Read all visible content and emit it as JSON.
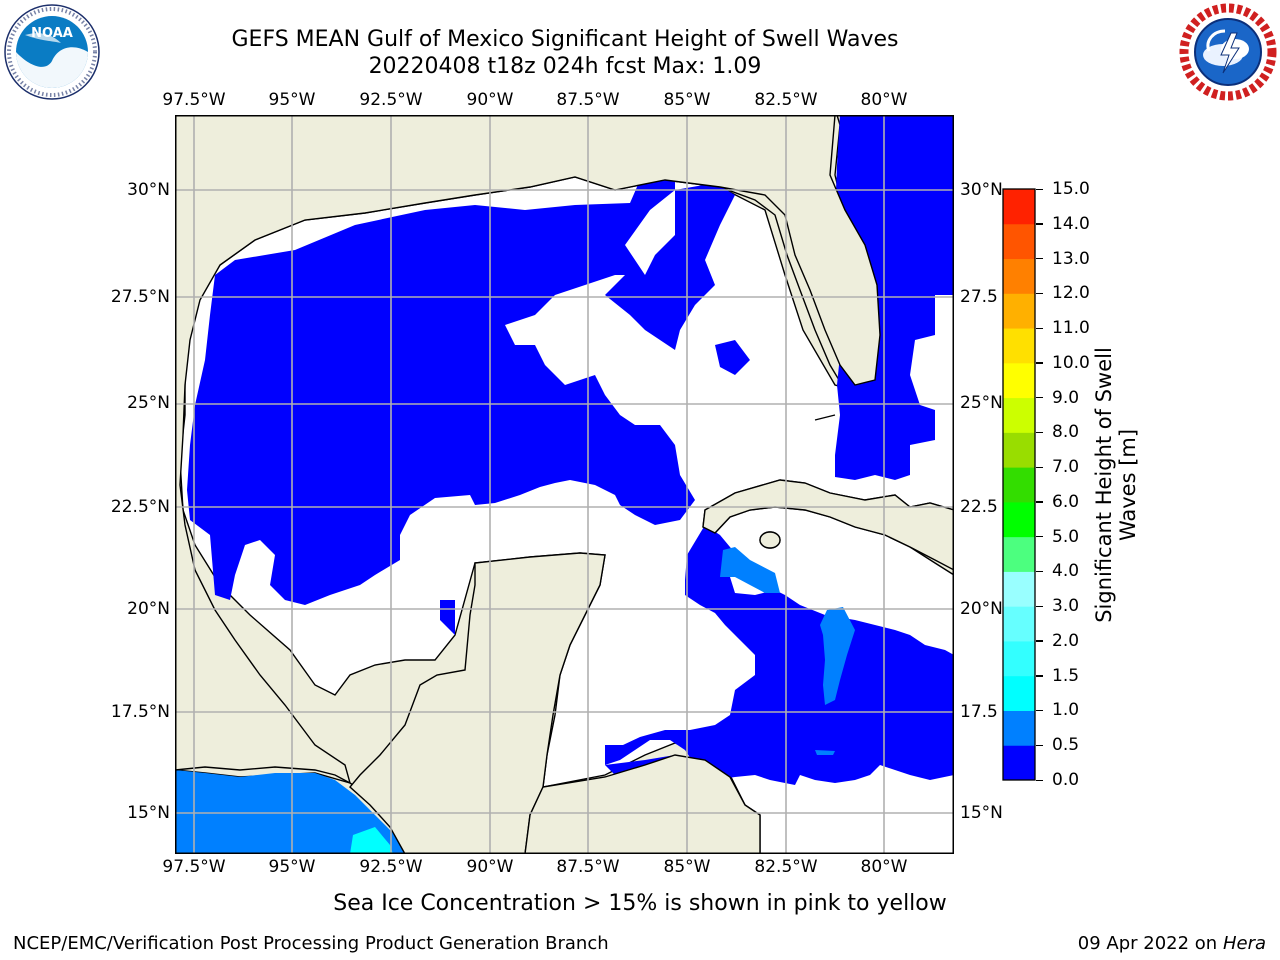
{
  "title": {
    "line1": "GEFS MEAN Gulf of Mexico Significant Height of Swell Waves",
    "line2": "20220408 t18z 024h fcst   Max: 1.09"
  },
  "logos": {
    "noaa": {
      "text": "NOAA",
      "ring_text": "NATIONAL OCEANIC AND ATMOSPHERIC ADMINISTRATION · U.S. DEPARTMENT OF COMMERCE"
    },
    "nws": {
      "ring_text": "NATIONAL WEATHER SERVICE"
    }
  },
  "map": {
    "lon_labels": [
      "97.5°W",
      "95°W",
      "92.5°W",
      "90°W",
      "87.5°W",
      "85°W",
      "82.5°W",
      "80°W"
    ],
    "lat_labels_left": [
      "30°N",
      "27.5°N",
      "25°N",
      "22.5°N",
      "20°N",
      "17.5°N",
      "15°N"
    ],
    "lat_labels_right": [
      "30°N",
      "27.5",
      "25°N",
      "22.5",
      "20°N",
      "17.5",
      "15°N"
    ],
    "colors": {
      "land": "#eeeedc",
      "no_data": "#ffffff",
      "grid": "#b0b0b0",
      "coast": "#000000"
    }
  },
  "colorbar": {
    "label_line1": "Significant Height of Swell",
    "label_line2": "Waves [m]",
    "ticks": [
      "0.0",
      "0.5",
      "1.0",
      "1.5",
      "2.0",
      "3.0",
      "4.0",
      "5.0",
      "6.0",
      "7.0",
      "8.0",
      "9.0",
      "10.0",
      "11.0",
      "12.0",
      "13.0",
      "14.0",
      "15.0"
    ],
    "colors": [
      "#0000ff",
      "#0080ff",
      "#00ffff",
      "#33ffff",
      "#66ffff",
      "#99ffff",
      "#4cff7f",
      "#00ff00",
      "#33dd00",
      "#99dd00",
      "#ccff00",
      "#ffff00",
      "#ffe000",
      "#ffb000",
      "#ff8000",
      "#ff5500",
      "#ff2200",
      "#ff0000"
    ]
  },
  "footer": {
    "note": "Sea Ice Concentration > 15% is shown in pink to yellow",
    "credit": "NCEP/EMC/Verification Post Processing Product Generation Branch",
    "date_prefix": "09 Apr 2022 on ",
    "date_host": "Hera"
  }
}
